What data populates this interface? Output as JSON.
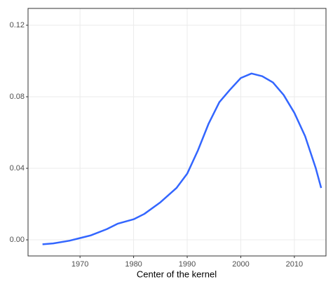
{
  "chart_data": {
    "type": "line",
    "xlabel": "Center of the kernel",
    "x": [
      1963,
      1965,
      1968,
      1970,
      1972,
      1975,
      1977,
      1980,
      1982,
      1985,
      1988,
      1990,
      1992,
      1994,
      1996,
      1998,
      2000,
      2002,
      2004,
      2006,
      2008,
      2010,
      2012,
      2014,
      2015
    ],
    "series": [
      {
        "color": "#3366ff",
        "values": [
          -0.0025,
          -0.002,
          -0.0005,
          0.001,
          0.0025,
          0.006,
          0.009,
          0.0115,
          0.0145,
          0.021,
          0.029,
          0.037,
          0.05,
          0.065,
          0.077,
          0.084,
          0.0905,
          0.093,
          0.0915,
          0.088,
          0.081,
          0.071,
          0.058,
          0.04,
          0.029
        ]
      }
    ],
    "xlim": [
      1960.3,
      2015.9
    ],
    "xticks": [
      1970,
      1980,
      1990,
      2000,
      2010
    ],
    "ylim": [
      -0.009,
      0.1294
    ],
    "yticks": [
      {
        "value": 0,
        "label": "0.00"
      },
      {
        "value": 0.04,
        "label": "0.04"
      },
      {
        "value": 0.08,
        "label": "0.08"
      },
      {
        "value": 0.12,
        "label": "0.12"
      }
    ],
    "grid": true
  }
}
